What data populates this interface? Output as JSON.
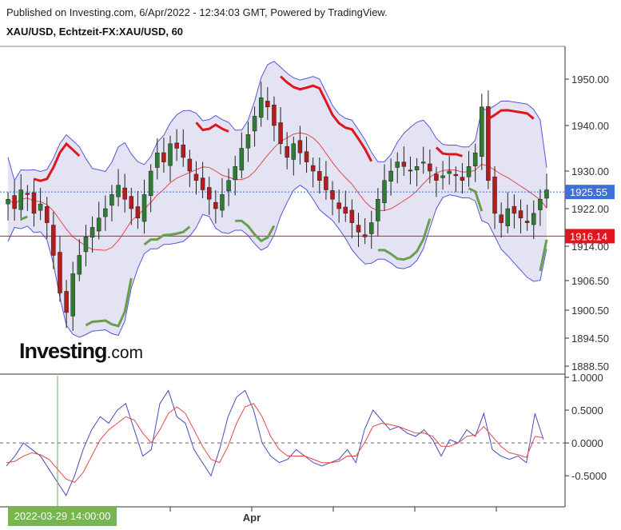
{
  "header": {
    "published": "Published on Investing.com, 6/Apr/2022 - 12:34:03 GMT, Powered by TradingView.",
    "symbol": "XAU/USD, Echtzeit-FX:XAU/USD, 60"
  },
  "logo": {
    "main": "Investing",
    "suffix": ".com"
  },
  "crosshair_date": "2022-03-29 14:00:00",
  "colors": {
    "band_fill": "#dcdcf0",
    "band_line": "#5555dd",
    "mid_line": "#e44848",
    "supertrend_up": "#6a9e4c",
    "supertrend_down": "#e0161c",
    "candle_up": "#2e7d32",
    "candle_down": "#b71c1c",
    "price_tag": "#3e6fdc",
    "level_tag": "#e0161c",
    "osc_fast": "#4a4ab8",
    "osc_slow": "#e44848",
    "crosshair": "#6aaa5a"
  },
  "chart_data": [
    {
      "type": "candlestick",
      "title": "XAU/USD, Echtzeit-FX:XAU/USD, 60",
      "ylim": [
        1886,
        1958
      ],
      "yticks": [
        "1950.00",
        "1940.00",
        "1930.00",
        "1922.00",
        "1914.00",
        "1906.50",
        "1900.50",
        "1894.50",
        "1888.50"
      ],
      "ytick_values": [
        1950,
        1940,
        1930,
        1922,
        1914,
        1906.5,
        1900.5,
        1894.5,
        1888.5
      ],
      "xlabels": [
        "Apr"
      ],
      "current_price": {
        "label": "1925.55",
        "value": 1925.55
      },
      "level": {
        "label": "1916.14",
        "value": 1916.14
      },
      "close": [
        1924,
        1922,
        1926,
        1925,
        1921,
        1923,
        1919,
        1912,
        1904,
        1900,
        1908,
        1912,
        1916,
        1918,
        1920,
        1922,
        1925,
        1927,
        1924,
        1922,
        1920,
        1925,
        1930,
        1934,
        1932,
        1936,
        1935,
        1933,
        1930,
        1928,
        1926,
        1924,
        1922,
        1925,
        1928,
        1931,
        1935,
        1938,
        1942,
        1946,
        1944,
        1940,
        1936,
        1933,
        1936,
        1934,
        1932,
        1930,
        1928,
        1926,
        1924,
        1922,
        1921,
        1919,
        1917,
        1916,
        1919,
        1924,
        1928,
        1930,
        1932,
        1931,
        1930,
        1931,
        1932,
        1930,
        1928,
        1929,
        1930,
        1929,
        1928,
        1931,
        1934,
        1944,
        1928,
        1921,
        1919,
        1922,
        1921,
        1920,
        1919,
        1921,
        1924,
        1926
      ],
      "osc_fast": [
        -0.35,
        -0.2,
        0,
        -0.1,
        -0.2,
        -0.4,
        -0.6,
        -0.8,
        -0.5,
        -0.1,
        0.2,
        0.4,
        0.3,
        0.5,
        0.6,
        0.2,
        -0.2,
        -0.1,
        0.6,
        0.8,
        0.4,
        0.3,
        -0.1,
        -0.3,
        -0.5,
        -0.1,
        0.4,
        0.7,
        0.8,
        0.5,
        0.0,
        -0.2,
        -0.3,
        -0.25,
        -0.1,
        -0.2,
        -0.3,
        -0.35,
        -0.3,
        -0.25,
        -0.1,
        -0.3,
        0.2,
        0.5,
        0.35,
        0.2,
        0.25,
        0.15,
        0.1,
        0.2,
        0.05,
        -0.2,
        0.05,
        0.0,
        0.2,
        0.1,
        0.45,
        -0.1,
        -0.2,
        -0.25,
        -0.2,
        -0.3,
        0.45,
        0.05
      ],
      "osc_slow": [
        -0.3,
        -0.28,
        -0.2,
        -0.15,
        -0.18,
        -0.25,
        -0.4,
        -0.55,
        -0.6,
        -0.45,
        -0.2,
        0.05,
        0.2,
        0.3,
        0.4,
        0.35,
        0.15,
        0.0,
        0.2,
        0.45,
        0.55,
        0.45,
        0.2,
        -0.05,
        -0.25,
        -0.3,
        -0.05,
        0.3,
        0.55,
        0.6,
        0.4,
        0.1,
        -0.1,
        -0.2,
        -0.2,
        -0.2,
        -0.25,
        -0.3,
        -0.3,
        -0.28,
        -0.2,
        -0.2,
        0.0,
        0.25,
        0.3,
        0.28,
        0.25,
        0.2,
        0.15,
        0.15,
        0.1,
        -0.05,
        -0.05,
        0.0,
        0.1,
        0.12,
        0.25,
        0.1,
        -0.05,
        -0.15,
        -0.18,
        -0.22,
        0.1,
        0.08
      ],
      "osc_ylim": [
        -0.9,
        1.0
      ],
      "osc_yticks": [
        "1.0000",
        "0.5000",
        "0.0000",
        "-0.5000"
      ],
      "osc_ytick_values": [
        1.0,
        0.5,
        0.0,
        -0.5
      ]
    }
  ]
}
